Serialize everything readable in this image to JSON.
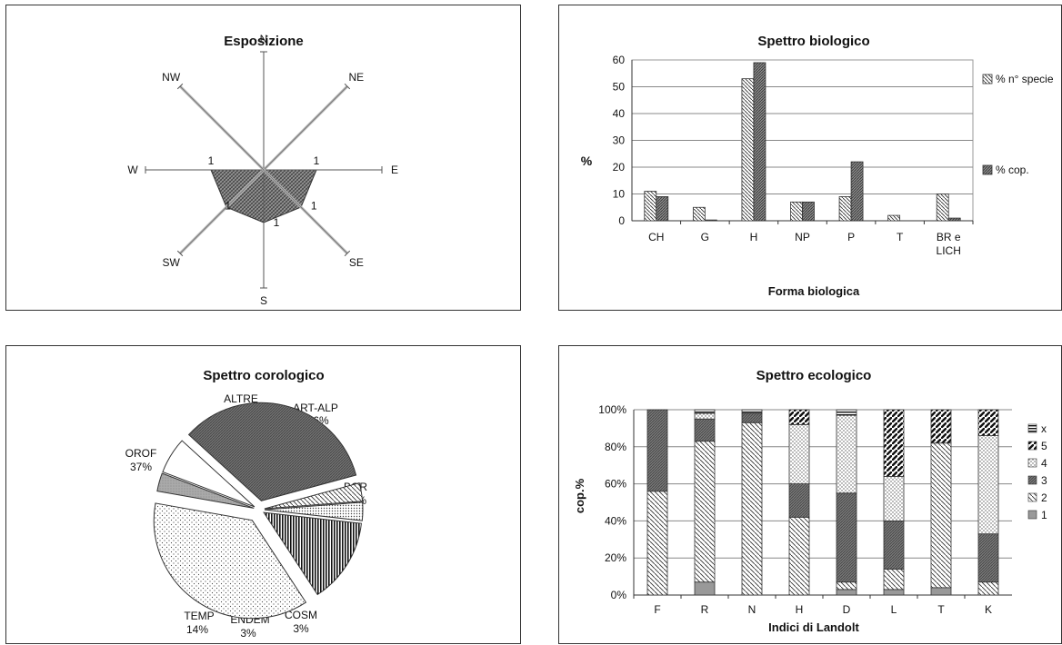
{
  "charts": {
    "radar": {
      "title": "Esposizione",
      "directions": [
        "N",
        "NE",
        "E",
        "SE",
        "S",
        "SW",
        "W",
        "NW"
      ],
      "values": [
        0,
        0,
        1,
        1,
        1,
        1,
        1,
        0
      ],
      "ring_labels": [
        {
          "direction": "E",
          "text": "1"
        },
        {
          "direction": "SE",
          "text": "1"
        },
        {
          "direction": "S",
          "text": "1"
        },
        {
          "direction": "SW",
          "text": "1"
        },
        {
          "direction": "W",
          "text": "1"
        }
      ]
    },
    "bio": {
      "title": "Spettro biologico",
      "ylabel": "%",
      "xlabel": "Forma biologica",
      "yticks": [
        "0",
        "10",
        "20",
        "30",
        "40",
        "50",
        "60"
      ]
    },
    "pie": {
      "title": "Spettro corologico"
    },
    "eco": {
      "title": "Spettro ecologico",
      "ylabel": "cop.%",
      "xlabel": "Indici di Landolt",
      "yticks": [
        "0%",
        "20%",
        "40%",
        "60%",
        "80%",
        "100%"
      ]
    }
  },
  "chart_data": [
    {
      "type": "radar",
      "title": "Esposizione",
      "categories": [
        "N",
        "NE",
        "E",
        "SE",
        "S",
        "SW",
        "W",
        "NW"
      ],
      "values": [
        0,
        0,
        1,
        1,
        1,
        1,
        1,
        0
      ]
    },
    {
      "type": "bar",
      "title": "Spettro biologico",
      "xlabel": "Forma biologica",
      "ylabel": "%",
      "ylim": [
        0,
        60
      ],
      "categories": [
        "CH",
        "G",
        "H",
        "NP",
        "P",
        "T",
        "BR e LICH"
      ],
      "series": [
        {
          "name": "% n° specie",
          "values": [
            11,
            5,
            53,
            7,
            9,
            2,
            10
          ],
          "pattern": "hatch"
        },
        {
          "name": "% cop.",
          "values": [
            9,
            0.3,
            59,
            7,
            22,
            0,
            1
          ],
          "pattern": "dark"
        }
      ],
      "legend": "right",
      "grid": true
    },
    {
      "type": "pie",
      "title": "Spettro corologico",
      "slices": [
        {
          "label": "ALTRE",
          "percent": "3%",
          "value": 3,
          "pattern": "gray"
        },
        {
          "label": "ART-ALP",
          "percent": "6%",
          "value": 6,
          "pattern": "white"
        },
        {
          "label": "BOR",
          "percent": "34%",
          "value": 34,
          "pattern": "dense"
        },
        {
          "label": "COSM",
          "percent": "3%",
          "value": 3,
          "pattern": "diag"
        },
        {
          "label": "ENDEM",
          "percent": "3%",
          "value": 3,
          "pattern": "dots"
        },
        {
          "label": "TEMP",
          "percent": "14%",
          "value": 14,
          "pattern": "vstripes"
        },
        {
          "label": "OROF",
          "percent": "37%",
          "value": 37,
          "pattern": "lightdots"
        }
      ]
    },
    {
      "type": "bar",
      "stacked": true,
      "title": "Spettro ecologico",
      "xlabel": "Indici di Landolt",
      "ylabel": "cop.%",
      "ylim": [
        0,
        100
      ],
      "categories": [
        "F",
        "R",
        "N",
        "H",
        "D",
        "L",
        "T",
        "K"
      ],
      "series": [
        {
          "name": "1",
          "values": [
            0,
            7,
            0,
            0,
            3,
            3,
            4,
            0
          ],
          "pattern": "gray"
        },
        {
          "name": "2",
          "values": [
            56,
            76,
            93,
            42,
            4,
            11,
            78,
            7
          ],
          "pattern": "diag"
        },
        {
          "name": "3",
          "values": [
            44,
            12,
            5,
            18,
            48,
            26,
            0,
            26
          ],
          "pattern": "dense"
        },
        {
          "name": "4",
          "values": [
            0,
            3,
            0,
            32,
            42,
            24,
            0,
            53
          ],
          "pattern": "dots"
        },
        {
          "name": "5",
          "values": [
            0,
            0,
            0,
            8,
            0,
            36,
            18,
            14
          ],
          "pattern": "bigdiag"
        },
        {
          "name": "x",
          "values": [
            0,
            2,
            2,
            0,
            3,
            0,
            0,
            0
          ],
          "pattern": "hlines"
        }
      ],
      "legend": "right",
      "grid": true
    }
  ]
}
